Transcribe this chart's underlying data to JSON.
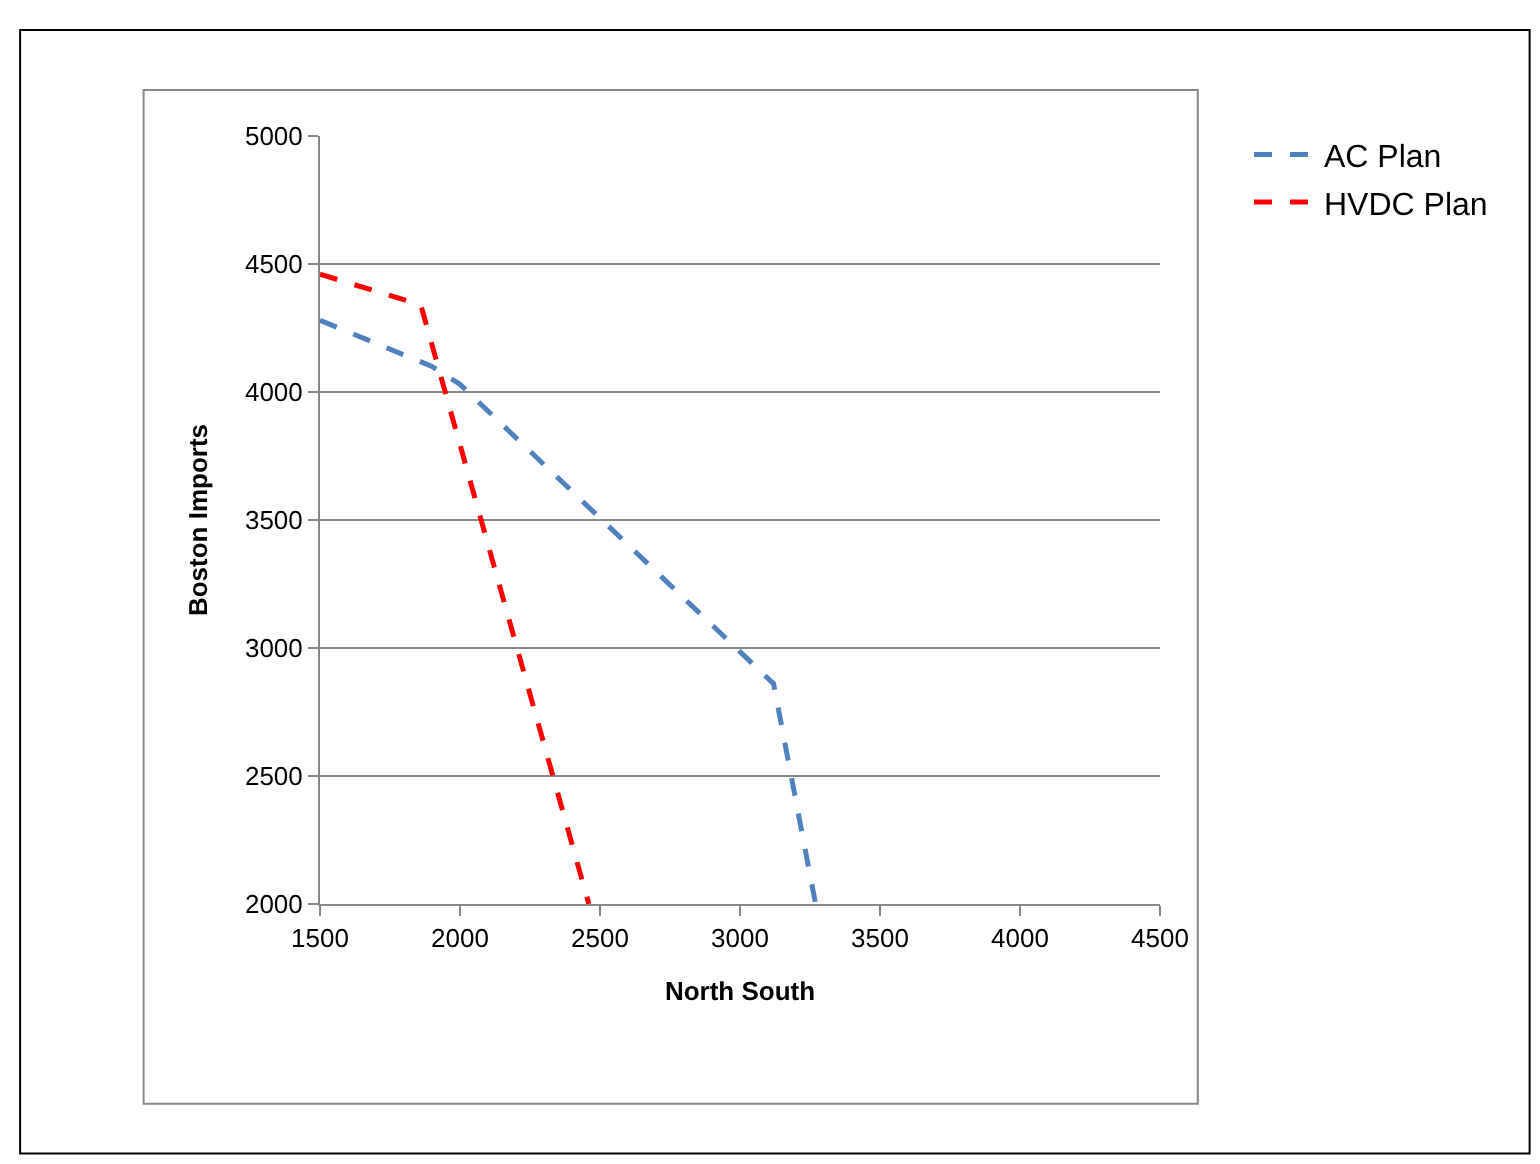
{
  "chart_data": {
    "type": "line",
    "xlabel": "North South",
    "ylabel": "Boston Imports",
    "series": [
      {
        "name": "AC Plan",
        "color": "#4f81bd",
        "x": [
          1500,
          1900,
          2000,
          3120,
          3270
        ],
        "values": [
          4280,
          4100,
          4030,
          2860,
          2000
        ]
      },
      {
        "name": "HVDC Plan",
        "color": "#ff0000",
        "x": [
          1500,
          1860,
          2460
        ],
        "values": [
          4460,
          4340,
          2000
        ]
      }
    ],
    "xlim": [
      1500,
      4500
    ],
    "xticks": [
      1500,
      2000,
      2500,
      3000,
      3500,
      4000,
      4500
    ],
    "ylim": [
      2000,
      5000
    ],
    "yticks": [
      2000,
      2500,
      3000,
      3500,
      4000,
      4500,
      5000
    ],
    "grid": "y",
    "legend": "top right",
    "line_style": "dashed",
    "marker": "none"
  }
}
